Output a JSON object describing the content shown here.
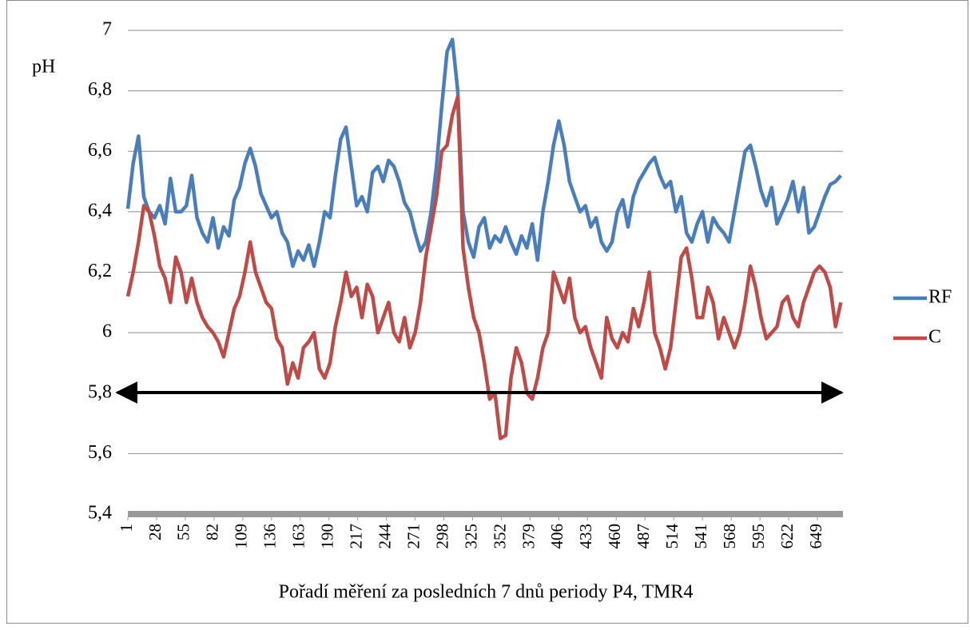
{
  "chart_data": {
    "type": "line",
    "y_label": "pH",
    "x_label": "Pořadí měření za posledních 7 dnů periody P4, TMR4",
    "xlim": [
      1,
      673
    ],
    "ylim": [
      5.4,
      7
    ],
    "xticks": [
      1,
      28,
      55,
      82,
      109,
      136,
      163,
      190,
      217,
      244,
      271,
      298,
      325,
      352,
      379,
      406,
      433,
      460,
      487,
      514,
      541,
      568,
      595,
      622,
      649
    ],
    "yticks": [
      {
        "value": 5.4,
        "label": "5,4"
      },
      {
        "value": 5.6,
        "label": "5,6"
      },
      {
        "value": 5.8,
        "label": "5,8"
      },
      6,
      {
        "value": 6.2,
        "label": "6,2"
      },
      {
        "value": 6.4,
        "label": "6,4"
      },
      {
        "value": 6.6,
        "label": "6,6"
      },
      {
        "value": 6.8,
        "label": "6,8"
      },
      7
    ],
    "grid": true,
    "legend": "right",
    "x": [
      1,
      6,
      11,
      16,
      21,
      26,
      31,
      36,
      41,
      46,
      51,
      56,
      61,
      66,
      71,
      76,
      81,
      86,
      91,
      96,
      101,
      106,
      111,
      116,
      121,
      126,
      131,
      136,
      141,
      146,
      151,
      156,
      161,
      166,
      171,
      176,
      181,
      186,
      191,
      196,
      201,
      206,
      211,
      216,
      221,
      226,
      231,
      236,
      241,
      246,
      251,
      256,
      261,
      266,
      271,
      276,
      281,
      286,
      291,
      296,
      301,
      306,
      311,
      316,
      321,
      326,
      331,
      336,
      341,
      346,
      351,
      356,
      361,
      366,
      371,
      376,
      381,
      386,
      391,
      396,
      401,
      406,
      411,
      416,
      421,
      426,
      431,
      436,
      441,
      446,
      451,
      456,
      461,
      466,
      471,
      476,
      481,
      486,
      491,
      496,
      501,
      506,
      511,
      516,
      521,
      526,
      531,
      536,
      541,
      546,
      551,
      556,
      561,
      566,
      571,
      576,
      581,
      586,
      591,
      596,
      601,
      606,
      611,
      616,
      621,
      626,
      631,
      636,
      641,
      646,
      651,
      656,
      661,
      666,
      671
    ],
    "series": [
      {
        "name": "RF",
        "color": "#4a7ebb",
        "values": [
          6.41,
          6.56,
          6.65,
          6.45,
          6.4,
          6.38,
          6.42,
          6.36,
          6.51,
          6.4,
          6.4,
          6.42,
          6.52,
          6.38,
          6.33,
          6.3,
          6.38,
          6.28,
          6.35,
          6.32,
          6.44,
          6.48,
          6.56,
          6.61,
          6.55,
          6.46,
          6.42,
          6.38,
          6.4,
          6.33,
          6.3,
          6.22,
          6.27,
          6.24,
          6.29,
          6.22,
          6.3,
          6.4,
          6.38,
          6.52,
          6.64,
          6.68,
          6.55,
          6.42,
          6.45,
          6.4,
          6.53,
          6.55,
          6.5,
          6.57,
          6.55,
          6.5,
          6.43,
          6.4,
          6.33,
          6.27,
          6.3,
          6.4,
          6.55,
          6.75,
          6.93,
          6.97,
          6.8,
          6.4,
          6.3,
          6.25,
          6.35,
          6.38,
          6.28,
          6.32,
          6.3,
          6.35,
          6.3,
          6.26,
          6.32,
          6.28,
          6.36,
          6.24,
          6.4,
          6.5,
          6.62,
          6.7,
          6.62,
          6.5,
          6.45,
          6.4,
          6.42,
          6.35,
          6.38,
          6.3,
          6.27,
          6.3,
          6.4,
          6.44,
          6.35,
          6.45,
          6.5,
          6.53,
          6.56,
          6.58,
          6.52,
          6.48,
          6.5,
          6.4,
          6.45,
          6.33,
          6.3,
          6.36,
          6.4,
          6.3,
          6.38,
          6.35,
          6.33,
          6.3,
          6.4,
          6.5,
          6.6,
          6.62,
          6.55,
          6.47,
          6.42,
          6.48,
          6.36,
          6.4,
          6.44,
          6.5,
          6.4,
          6.48,
          6.33,
          6.35,
          6.4,
          6.45,
          6.49,
          6.5,
          6.52
        ]
      },
      {
        "name": "C",
        "color": "#be4b48",
        "values": [
          6.12,
          6.2,
          6.3,
          6.42,
          6.4,
          6.32,
          6.22,
          6.18,
          6.1,
          6.25,
          6.2,
          6.1,
          6.18,
          6.1,
          6.05,
          6.02,
          6.0,
          5.97,
          5.92,
          6.0,
          6.08,
          6.12,
          6.2,
          6.3,
          6.2,
          6.15,
          6.1,
          6.08,
          5.98,
          5.95,
          5.83,
          5.9,
          5.85,
          5.95,
          5.97,
          6.0,
          5.88,
          5.85,
          5.9,
          6.02,
          6.1,
          6.2,
          6.12,
          6.15,
          6.05,
          6.16,
          6.12,
          6.0,
          6.05,
          6.1,
          6.0,
          5.97,
          6.05,
          5.95,
          6.0,
          6.1,
          6.25,
          6.35,
          6.45,
          6.6,
          6.62,
          6.72,
          6.78,
          6.28,
          6.15,
          6.05,
          6.0,
          5.9,
          5.78,
          5.8,
          5.65,
          5.66,
          5.85,
          5.95,
          5.9,
          5.8,
          5.78,
          5.85,
          5.95,
          6.0,
          6.2,
          6.15,
          6.1,
          6.18,
          6.05,
          6.0,
          6.02,
          5.95,
          5.9,
          5.85,
          6.05,
          5.98,
          5.95,
          6.0,
          5.97,
          6.08,
          6.02,
          6.1,
          6.2,
          6.0,
          5.95,
          5.88,
          5.95,
          6.1,
          6.25,
          6.28,
          6.18,
          6.05,
          6.05,
          6.15,
          6.1,
          5.98,
          6.05,
          6.0,
          5.95,
          6.0,
          6.1,
          6.22,
          6.15,
          6.05,
          5.98,
          6.0,
          6.02,
          6.1,
          6.12,
          6.05,
          6.02,
          6.1,
          6.15,
          6.2,
          6.22,
          6.2,
          6.15,
          6.02,
          6.1
        ]
      }
    ]
  }
}
